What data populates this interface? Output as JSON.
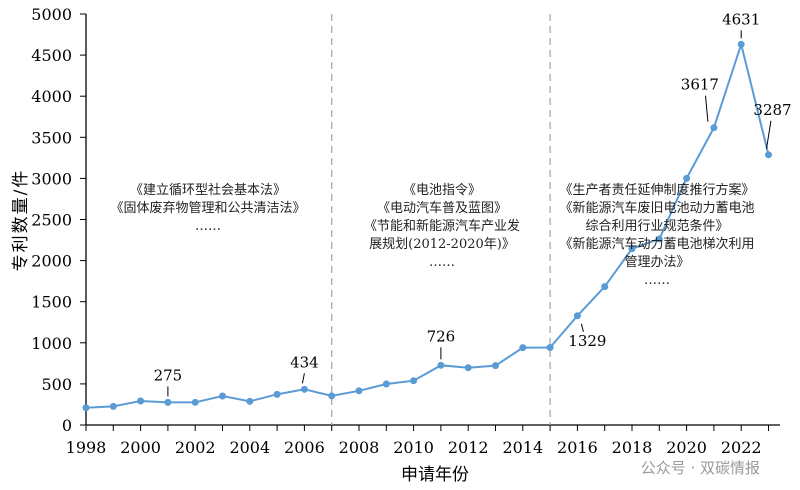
{
  "chart_data": {
    "type": "line",
    "xlabel": "申请年份",
    "ylabel": "专利数量/件",
    "ylim": [
      0,
      5000
    ],
    "yticks": [
      0,
      500,
      1000,
      1500,
      2000,
      2500,
      3000,
      3500,
      4000,
      4500,
      5000
    ],
    "xticks": [
      1998,
      2000,
      2002,
      2004,
      2006,
      2008,
      2010,
      2012,
      2014,
      2016,
      2018,
      2020,
      2022
    ],
    "x": [
      1998,
      1999,
      2000,
      2001,
      2002,
      2003,
      2004,
      2005,
      2006,
      2007,
      2008,
      2009,
      2010,
      2011,
      2012,
      2013,
      2014,
      2015,
      2016,
      2017,
      2018,
      2019,
      2020,
      2021,
      2022,
      2023
    ],
    "values": [
      210,
      227,
      292,
      275,
      276,
      353,
      288,
      373,
      434,
      355,
      416,
      499,
      539,
      726,
      697,
      722,
      941,
      943,
      1329,
      1683,
      2145,
      2263,
      3001,
      3617,
      4631,
      3287
    ],
    "data_labels": {
      "2001": "275",
      "2006": "434",
      "2011": "726",
      "2016": "1329",
      "2021": "3617",
      "2022": "4631",
      "2023": "3287"
    },
    "dividers": [
      2007,
      2015
    ],
    "color": "#5b9bd5",
    "grid": false,
    "annotations": [
      {
        "lines": [
          "《建立循环型社会基本法》",
          "《固体废弃物管理和公共清洁法》",
          "……"
        ]
      },
      {
        "lines": [
          "《电池指令》",
          "《电动汽车普及蓝图》",
          "《节能和新能源汽车产业发",
          "展规划(2012-2020年)》",
          "……"
        ]
      },
      {
        "lines": [
          "《生产者责任延伸制度推行方案》",
          "《新能源汽车废旧电池动力蓄电池",
          "综合利用行业规范条件》",
          "《新能源汽车动力蓄电池梯次利用",
          "管理办法》",
          "……"
        ]
      }
    ]
  },
  "watermark": "公众号 · 双碳情报"
}
